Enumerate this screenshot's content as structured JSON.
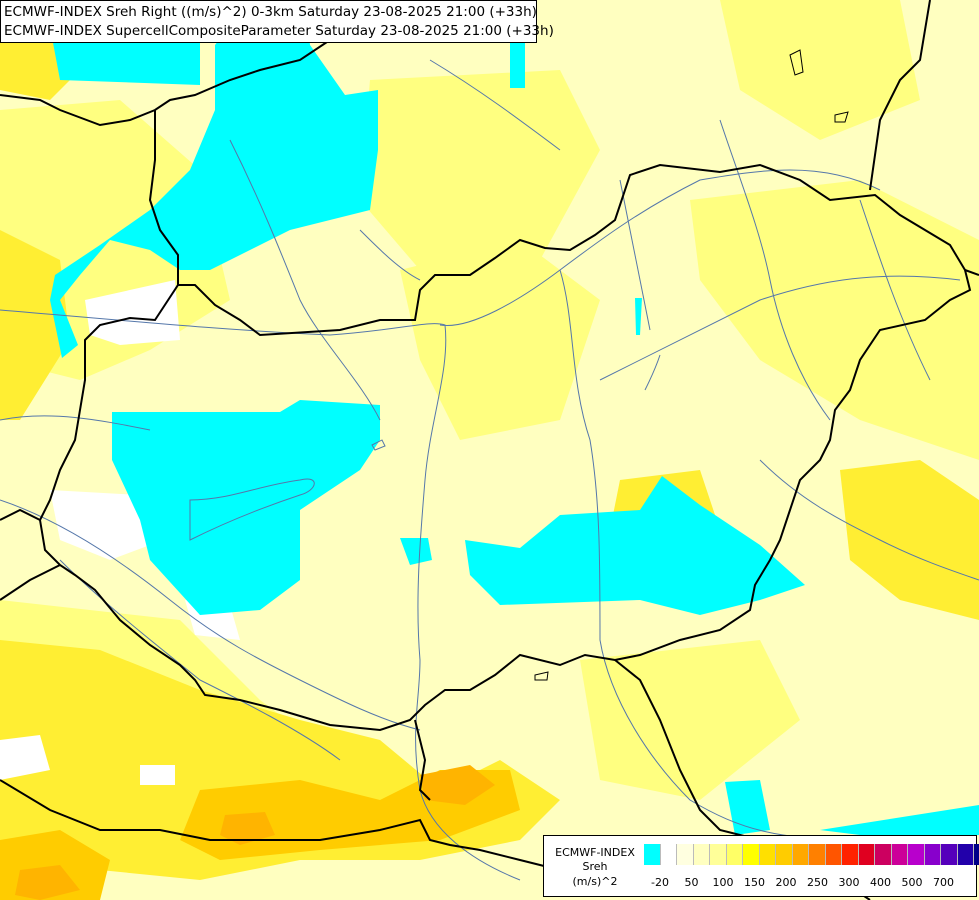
{
  "title": {
    "line1": "ECMWF-INDEX Sreh Right ((m/s)^2) 0-3km Saturday 23-08-2025 21:00 (+33h)",
    "line2": "ECMWF-INDEX SupercellCompositeParameter Saturday 23-08-2025 21:00 (+33h)"
  },
  "legend": {
    "model": "ECMWF-INDEX",
    "variable": "Sreh",
    "unit": "(m/s)^2",
    "colors": [
      "#00ffff",
      "#ffffff",
      "#ffffe0",
      "#ffffc0",
      "#ffff99",
      "#ffff66",
      "#ffff00",
      "#ffe000",
      "#ffcc00",
      "#ffa800",
      "#ff8000",
      "#ff5500",
      "#ff2200",
      "#e00020",
      "#cc0060",
      "#cc0099",
      "#b800cc",
      "#8800cc",
      "#5500bb",
      "#2200aa",
      "#000088"
    ],
    "ticks": [
      "-20",
      "50",
      "100",
      "150",
      "200",
      "250",
      "300",
      "400",
      "500",
      "700"
    ]
  },
  "map": {
    "colors": {
      "background": "#ffffc0",
      "low": "#00ffff",
      "neutral": "#ffffff",
      "light": "#ffffa0",
      "medium": "#ffff66",
      "strong": "#ffee00",
      "stronger": "#ffd000",
      "peak": "#ffa800",
      "border": "#000000",
      "river": "#5577aa"
    }
  }
}
